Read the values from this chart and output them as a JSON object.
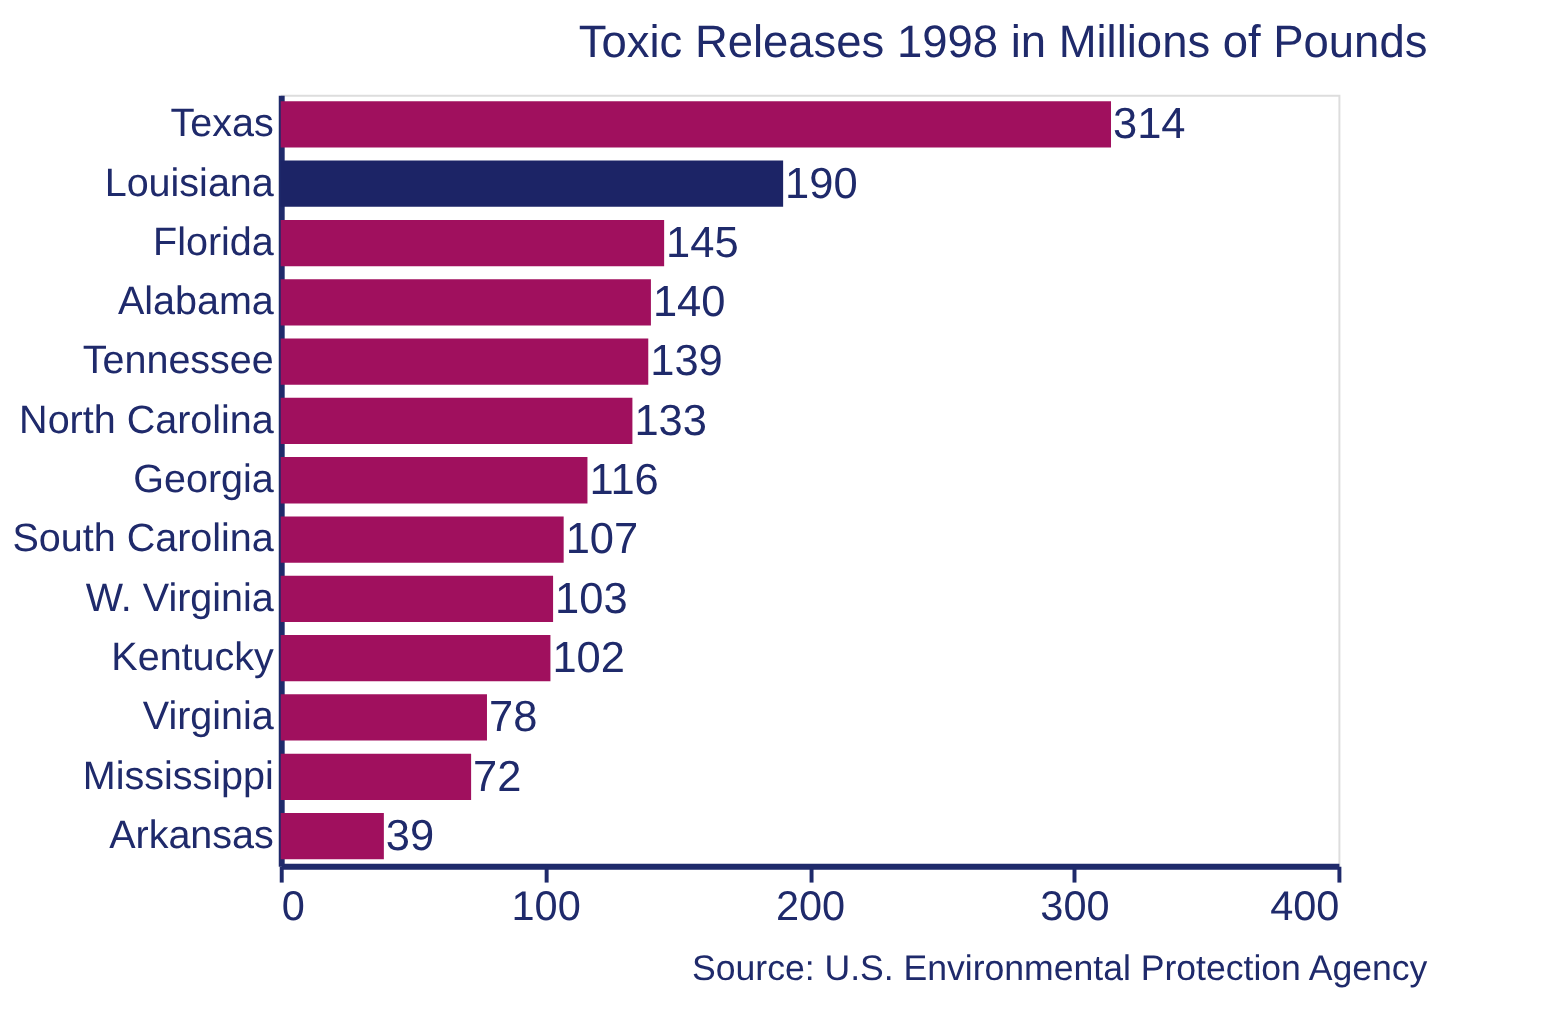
{
  "chart_data": {
    "type": "bar",
    "orientation": "horizontal",
    "title": "Toxic Releases 1998 in Millions of Pounds",
    "categories": [
      "Texas",
      "Louisiana",
      "Florida",
      "Alabama",
      "Tennessee",
      "North Carolina",
      "Georgia",
      "South Carolina",
      "W. Virginia",
      "Kentucky",
      "Virginia",
      "Mississippi",
      "Arkansas"
    ],
    "values": [
      314,
      190,
      145,
      140,
      139,
      133,
      116,
      107,
      103,
      102,
      78,
      72,
      39
    ],
    "colors": [
      "#a0105e",
      "#1c2466",
      "#a0105e",
      "#a0105e",
      "#a0105e",
      "#a0105e",
      "#a0105e",
      "#a0105e",
      "#a0105e",
      "#a0105e",
      "#a0105e",
      "#a0105e",
      "#a0105e"
    ],
    "xlim": [
      0,
      400
    ],
    "xticks": [
      0,
      100,
      200,
      300,
      400
    ],
    "data_labels": true,
    "grid": false,
    "annotations": [
      "Source:  U.S. Environmental Protection Agency"
    ]
  }
}
